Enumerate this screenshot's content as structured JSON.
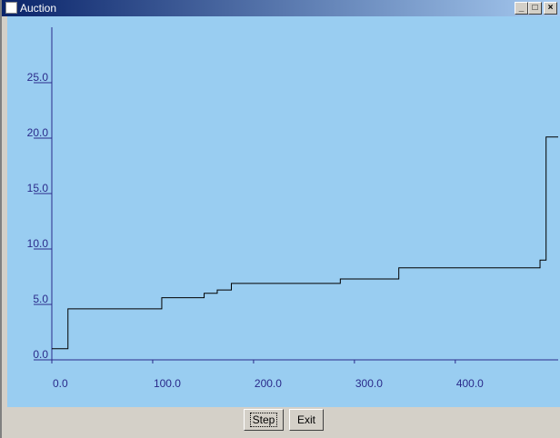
{
  "window": {
    "title": "Auction"
  },
  "chart_data": {
    "type": "line",
    "step": "post",
    "color": "#000000",
    "background": "#99cdf1",
    "axis_color": "#2a2a8a",
    "x": [
      0,
      16,
      109,
      151,
      164,
      178,
      286,
      344,
      484,
      490,
      502
    ],
    "values": [
      1.0,
      4.6,
      5.6,
      6.0,
      6.3,
      6.9,
      7.3,
      8.3,
      9.0,
      20.1,
      20.1
    ],
    "xlim": [
      0,
      502
    ],
    "ylim": [
      0,
      30
    ],
    "xticks": [
      {
        "value": 0,
        "label": "0.0"
      },
      {
        "value": 100,
        "label": "100.0"
      },
      {
        "value": 200,
        "label": "200.0"
      },
      {
        "value": 300,
        "label": "300.0"
      },
      {
        "value": 400,
        "label": "400.0"
      }
    ],
    "yticks": [
      {
        "value": 0,
        "label": "0.0"
      },
      {
        "value": 5,
        "label": "5.0"
      },
      {
        "value": 10,
        "label": "10.0"
      },
      {
        "value": 15,
        "label": "15.0"
      },
      {
        "value": 20,
        "label": "20.0"
      },
      {
        "value": 25,
        "label": "25.0"
      }
    ]
  },
  "buttons": [
    {
      "label": "Step"
    },
    {
      "label": "Exit"
    }
  ]
}
